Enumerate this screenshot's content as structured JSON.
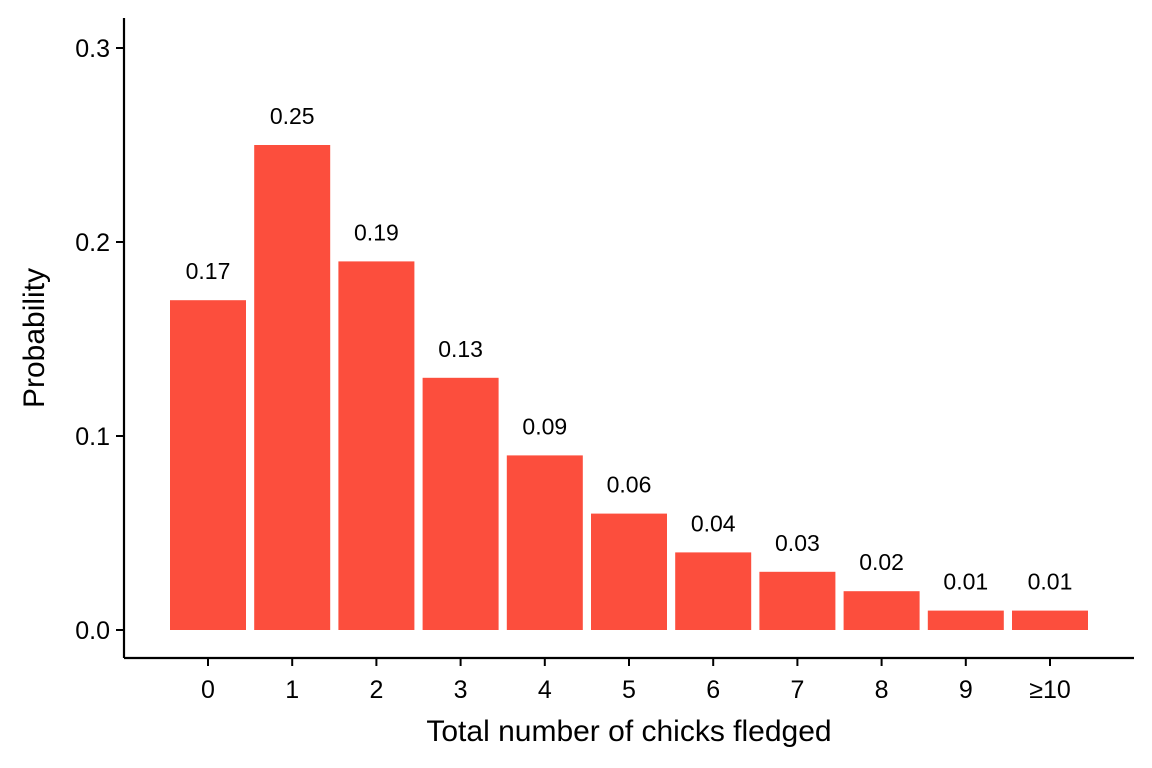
{
  "chart_data": {
    "type": "bar",
    "categories": [
      "0",
      "1",
      "2",
      "3",
      "4",
      "5",
      "6",
      "7",
      "8",
      "9",
      "≥10"
    ],
    "values": [
      0.17,
      0.25,
      0.19,
      0.13,
      0.09,
      0.06,
      0.04,
      0.03,
      0.02,
      0.01,
      0.01
    ],
    "data_labels": [
      "0.17",
      "0.25",
      "0.19",
      "0.13",
      "0.09",
      "0.06",
      "0.04",
      "0.03",
      "0.02",
      "0.01",
      "0.01"
    ],
    "title": "",
    "xlabel": "Total number of chicks fledged",
    "ylabel": "Probability",
    "ylim": [
      0,
      0.3
    ],
    "yticks": [
      0.0,
      0.1,
      0.2,
      0.3
    ],
    "ytick_labels": [
      "0.0",
      "0.1",
      "0.2",
      "0.3"
    ],
    "grid": false,
    "legend": "none",
    "bar_color": "#fc4e3d"
  }
}
